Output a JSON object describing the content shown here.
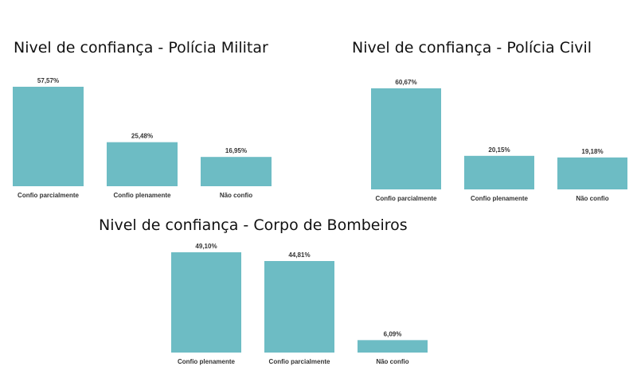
{
  "colors": {
    "bar": "#6dbcc4",
    "text": "#333333"
  },
  "chart_data": [
    {
      "type": "bar",
      "title": "Nivel de confiança - Polícia Militar",
      "categories": [
        "Confio parcialmente",
        "Confio plenamente",
        "Não confio"
      ],
      "values": [
        57.57,
        25.48,
        16.95
      ],
      "value_labels": [
        "57,57%",
        "25,48%",
        "16,95%"
      ],
      "ylim": [
        0,
        60
      ],
      "grid": false
    },
    {
      "type": "bar",
      "title": "Nivel de confiança - Polícia Civil",
      "categories": [
        "Confio parcialmente",
        "Confio plenamente",
        "Não confio"
      ],
      "values": [
        60.67,
        20.15,
        19.18
      ],
      "value_labels": [
        "60,67%",
        "20,15%",
        "19,18%"
      ],
      "ylim": [
        0,
        60
      ],
      "grid": false
    },
    {
      "type": "bar",
      "title": "Nivel de confiança - Corpo de Bombeiros",
      "categories": [
        "Confio plenamente",
        "Confio parcialmente",
        "Não confio"
      ],
      "values": [
        49.1,
        44.81,
        6.09
      ],
      "value_labels": [
        "49,10%",
        "44,81%",
        "6,09%"
      ],
      "ylim": [
        0,
        50
      ],
      "grid": false
    }
  ]
}
